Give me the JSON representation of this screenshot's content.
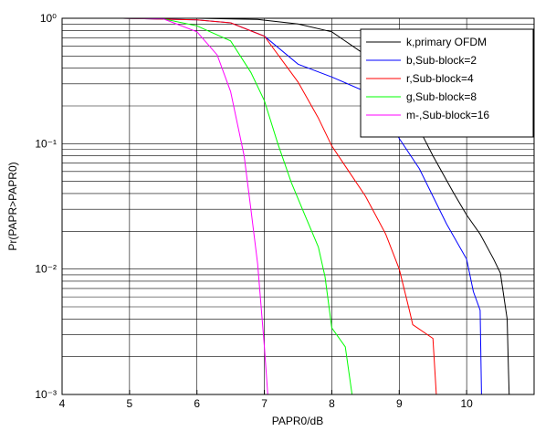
{
  "chart_data": {
    "type": "line",
    "x_label": "PAPR0/dB",
    "y_label": "Pr(PAPR>PAPR0)",
    "xlim": [
      4,
      11
    ],
    "xticks": [
      4,
      5,
      6,
      7,
      8,
      9,
      10
    ],
    "ylim": [
      0.001,
      1
    ],
    "log_y": true,
    "yticks": [
      {
        "value": 1,
        "label": "10⁰"
      },
      {
        "value": 0.1,
        "label": "10⁻¹"
      },
      {
        "value": 0.01,
        "label": "10⁻²"
      },
      {
        "value": 0.001,
        "label": "10⁻³"
      }
    ],
    "grid": true,
    "legend": "northeast",
    "series": [
      {
        "name": "k,primary OFDM",
        "color": "#000000",
        "x": [
          4.9,
          6.0,
          6.9,
          7.5,
          8.0,
          8.5,
          8.8,
          9.0,
          9.3,
          9.5,
          9.8,
          10.0,
          10.2,
          10.4,
          10.5,
          10.6,
          10.62,
          10.63
        ],
        "values": [
          1,
          1,
          0.98,
          0.9,
          0.78,
          0.51,
          0.31,
          0.22,
          0.13,
          0.08,
          0.041,
          0.027,
          0.019,
          0.012,
          0.0093,
          0.004,
          0.0016,
          0.001
        ]
      },
      {
        "name": "b,Sub-block=2",
        "color": "#0000ff",
        "x": [
          4.9,
          6.0,
          6.5,
          7.0,
          7.5,
          8.0,
          8.5,
          8.8,
          9.0,
          9.3,
          9.5,
          9.7,
          10.0,
          10.1,
          10.2,
          10.22
        ],
        "values": [
          1,
          0.97,
          0.92,
          0.72,
          0.43,
          0.34,
          0.26,
          0.17,
          0.11,
          0.063,
          0.038,
          0.023,
          0.012,
          0.0066,
          0.0047,
          0.001
        ]
      },
      {
        "name": "r,Sub-block=4",
        "color": "#ff0000",
        "x": [
          4.9,
          6.0,
          6.5,
          7.0,
          7.5,
          7.8,
          8.0,
          8.5,
          8.8,
          9.0,
          9.15,
          9.2,
          9.5,
          9.55
        ],
        "values": [
          1,
          0.97,
          0.92,
          0.72,
          0.31,
          0.16,
          0.096,
          0.038,
          0.019,
          0.01,
          0.0047,
          0.0036,
          0.0028,
          0.001
        ]
      },
      {
        "name": "g,Sub-block=8",
        "color": "#00ff00",
        "x": [
          4.9,
          5.5,
          6.0,
          6.5,
          6.8,
          7.0,
          7.2,
          7.4,
          7.6,
          7.8,
          7.9,
          8.0,
          8.2,
          8.3
        ],
        "values": [
          1,
          0.99,
          0.87,
          0.66,
          0.37,
          0.22,
          0.1,
          0.049,
          0.027,
          0.015,
          0.0087,
          0.0034,
          0.0024,
          0.001
        ]
      },
      {
        "name": "m-,Sub-block=16",
        "color": "#ff00ff",
        "x": [
          4.9,
          5.5,
          6.0,
          6.3,
          6.5,
          6.7,
          6.8,
          6.9,
          7.0,
          7.05
        ],
        "values": [
          1,
          0.99,
          0.78,
          0.51,
          0.26,
          0.08,
          0.03,
          0.011,
          0.0024,
          0.001
        ]
      }
    ]
  }
}
